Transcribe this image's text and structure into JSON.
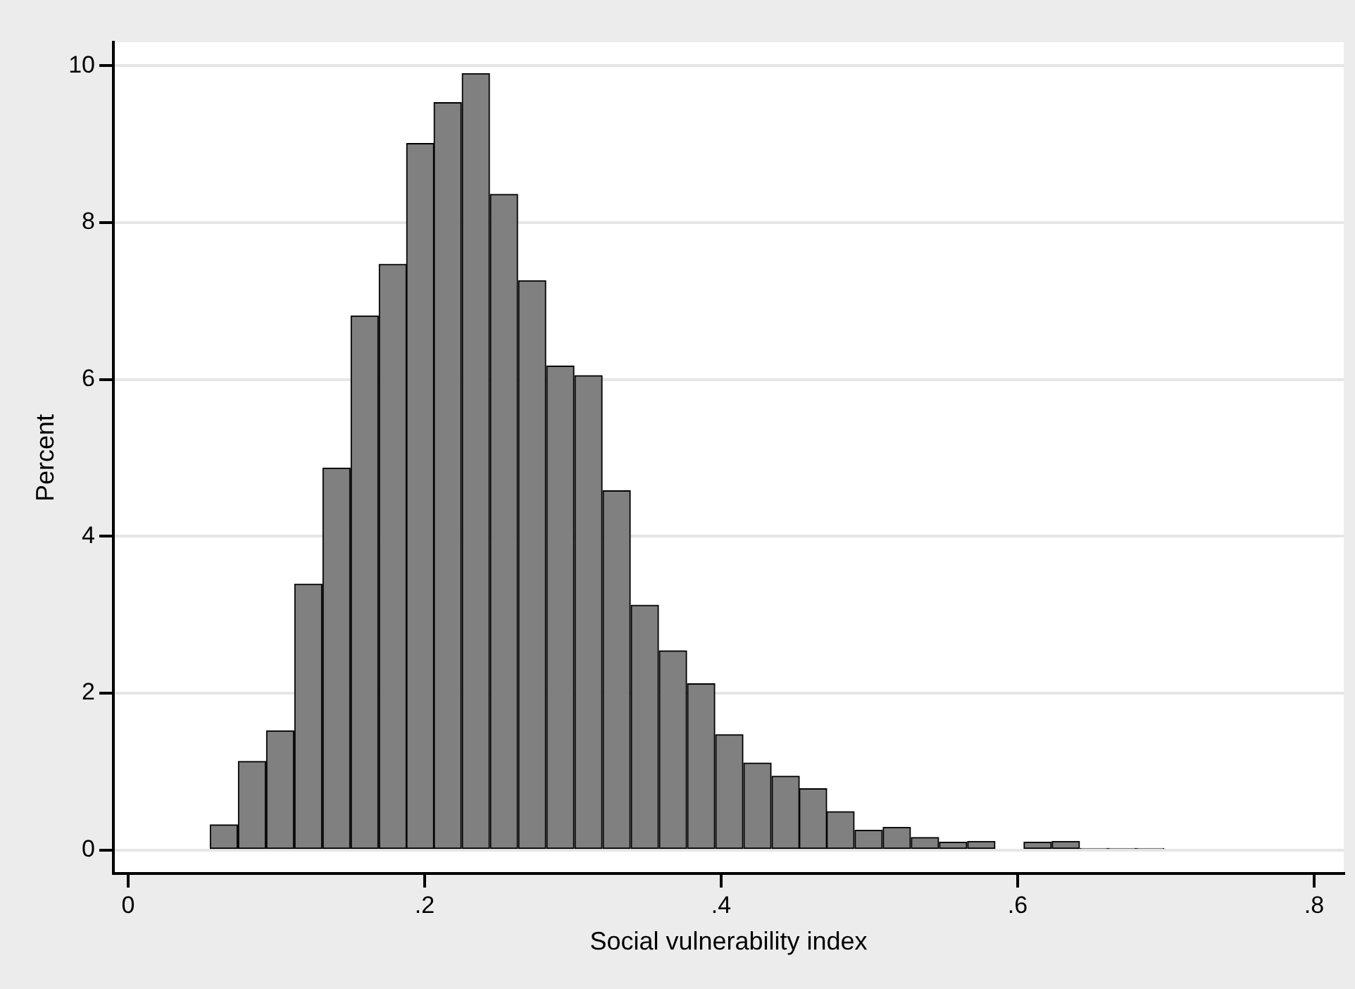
{
  "chart_data": {
    "type": "histogram",
    "xlabel": "Social vulnerability index",
    "ylabel": "Percent",
    "bins": [
      0.055,
      0.074,
      0.093,
      0.112,
      0.131,
      0.15,
      0.169,
      0.188,
      0.206,
      0.225,
      0.244,
      0.263,
      0.282,
      0.301,
      0.32,
      0.339,
      0.358,
      0.377,
      0.396,
      0.415,
      0.434,
      0.453,
      0.471,
      0.49,
      0.509,
      0.528,
      0.547,
      0.566,
      0.585,
      0.604,
      0.623,
      0.642,
      0.661,
      0.68,
      0.699
    ],
    "values": [
      0.32,
      1.13,
      1.52,
      3.39,
      4.87,
      6.81,
      7.47,
      9.01,
      9.53,
      9.9,
      8.36,
      7.26,
      6.17,
      6.05,
      4.58,
      3.12,
      2.54,
      2.12,
      1.47,
      1.11,
      0.94,
      0.78,
      0.49,
      0.25,
      0.29,
      0.16,
      0.1,
      0.11,
      0,
      0.1,
      0.11,
      0.02,
      0.02,
      0.02
    ],
    "color": "#808080",
    "xlim": [
      -0.01,
      0.82
    ],
    "xticks": [
      0,
      {
        "value": 0.2,
        "label": ".2"
      },
      {
        "value": 0.4,
        "label": ".4"
      },
      {
        "value": 0.6,
        "label": ".6"
      },
      {
        "value": 0.8,
        "label": ".8"
      }
    ],
    "ylim": [
      -0.3,
      10.3
    ],
    "yticks": [
      0,
      2,
      4,
      6,
      8,
      10
    ],
    "grid": "y",
    "legend": false
  }
}
